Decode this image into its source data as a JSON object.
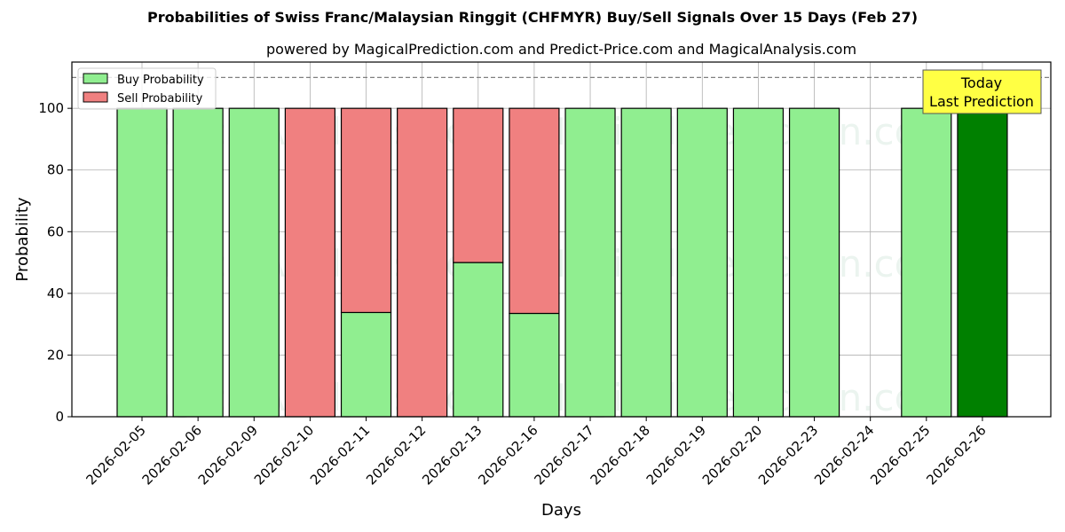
{
  "chart_data": {
    "type": "bar",
    "stacked": true,
    "title": "Probabilities of Swiss Franc/Malaysian Ringgit (CHFMYR) Buy/Sell Signals Over 15 Days (Feb 27)",
    "subtitle": "powered by MagicalPrediction.com and Predict-Price.com and MagicalAnalysis.com",
    "xlabel": "Days",
    "ylabel": "Probability",
    "ylim": [
      0,
      115
    ],
    "yticks": [
      0,
      20,
      40,
      60,
      80,
      100
    ],
    "grid": true,
    "legend_position": "upper left",
    "reference_line": {
      "y": 110,
      "style": "dashed",
      "color": "#808080"
    },
    "categories": [
      "2026-02-05",
      "2026-02-06",
      "2026-02-09",
      "2026-02-10",
      "2026-02-11",
      "2026-02-12",
      "2026-02-13",
      "2026-02-16",
      "2026-02-17",
      "2026-02-18",
      "2026-02-19",
      "2026-02-20",
      "2026-02-23",
      "2026-02-24",
      "2026-02-25",
      "2026-02-26"
    ],
    "series": [
      {
        "name": "Buy Probability",
        "color": "#90ee90",
        "values": [
          100,
          100,
          100,
          0,
          33.8,
          0,
          50,
          33.5,
          100,
          100,
          100,
          100,
          100,
          null,
          100,
          100
        ]
      },
      {
        "name": "Sell Probability",
        "color": "#f08080",
        "values": [
          0,
          0,
          0,
          100,
          66.2,
          100,
          50,
          66.5,
          0,
          0,
          0,
          0,
          0,
          null,
          0,
          0
        ]
      }
    ],
    "highlight": {
      "category": "2026-02-26",
      "color": "#008000"
    },
    "annotation": {
      "lines": [
        "Today",
        "Last Prediction"
      ],
      "bg": "#ffff44",
      "target": "2026-02-26"
    },
    "watermarks": [
      "MagicalAnalysis.com",
      "MagicalPrediction.com"
    ]
  },
  "legend": {
    "buy": "Buy Probability",
    "sell": "Sell Probability"
  }
}
